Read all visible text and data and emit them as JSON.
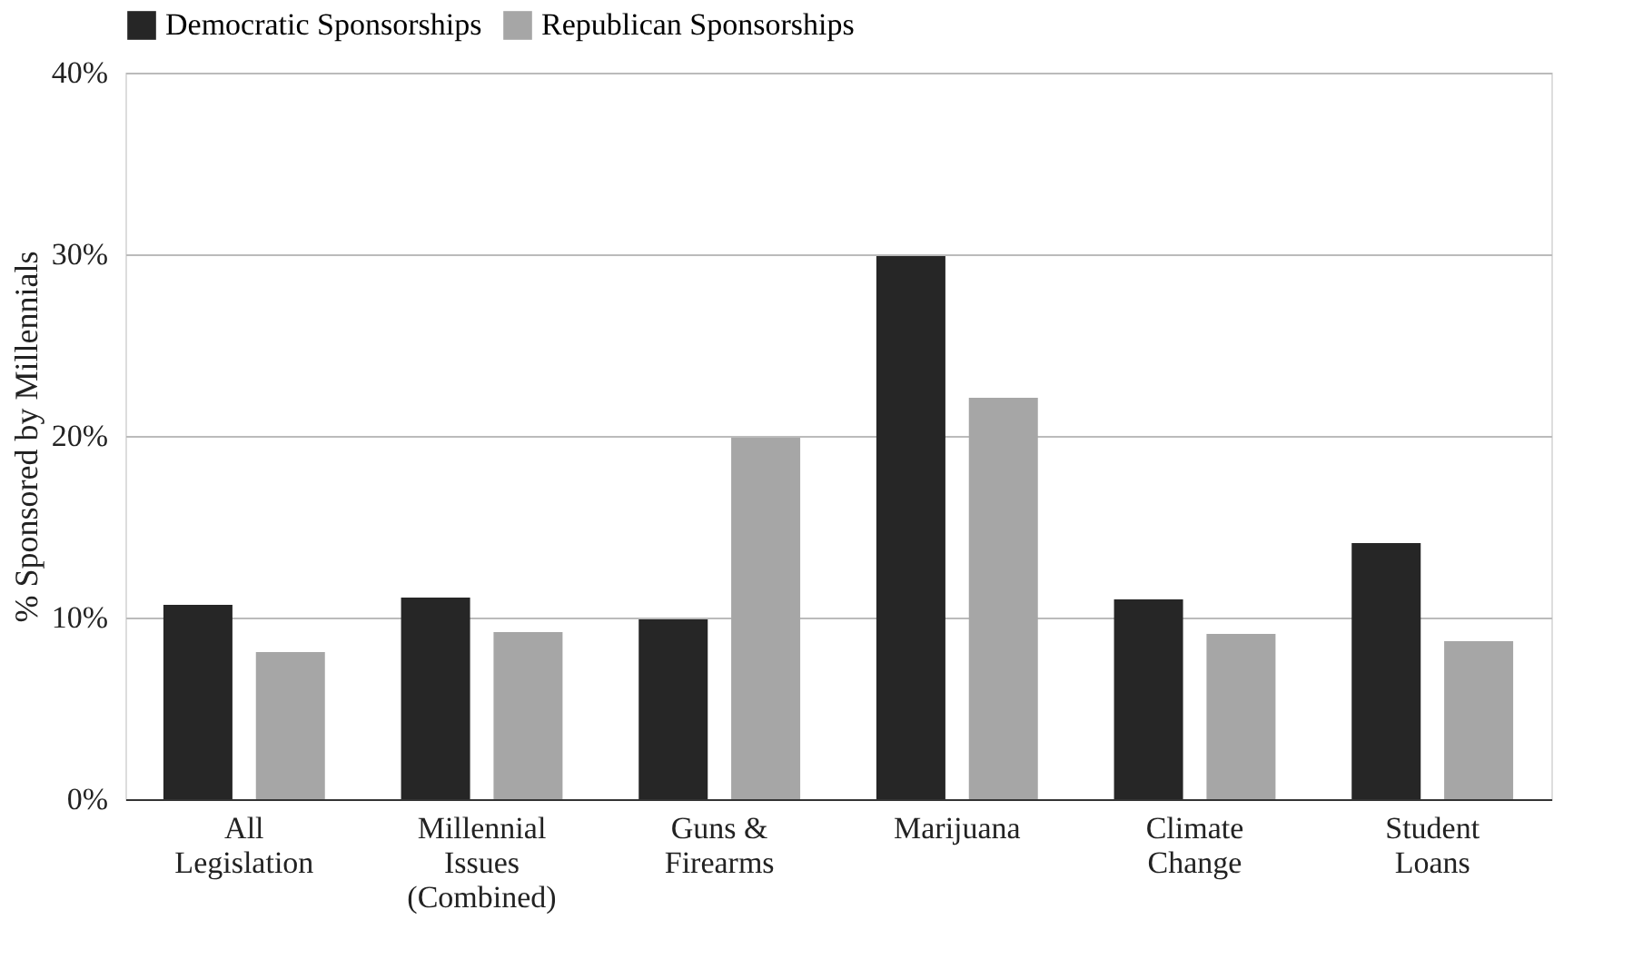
{
  "chart_data": {
    "type": "bar",
    "ylabel": "% Sponsored by Millennials",
    "categories": [
      "All\nLegislation",
      "Millennial\nIssues\n(Combined)",
      "Guns &\nFirearms",
      "Marijuana",
      "Climate\nChange",
      "Student\nLoans"
    ],
    "series": [
      {
        "name": "Democratic Sponsorships",
        "color": "#262626",
        "values": [
          10.7,
          11.1,
          9.9,
          29.9,
          11.0,
          14.1
        ]
      },
      {
        "name": "Republican Sponsorships",
        "color": "#a6a6a6",
        "values": [
          8.1,
          9.2,
          19.9,
          22.1,
          9.1,
          8.7
        ]
      }
    ],
    "ylim": [
      0,
      40
    ],
    "yticks": [
      {
        "value": 0,
        "label": "0%"
      },
      {
        "value": 10,
        "label": "10%"
      },
      {
        "value": 20,
        "label": "20%"
      },
      {
        "value": 30,
        "label": "30%"
      },
      {
        "value": 40,
        "label": "40%"
      }
    ],
    "grid": "y",
    "legend": "top"
  }
}
